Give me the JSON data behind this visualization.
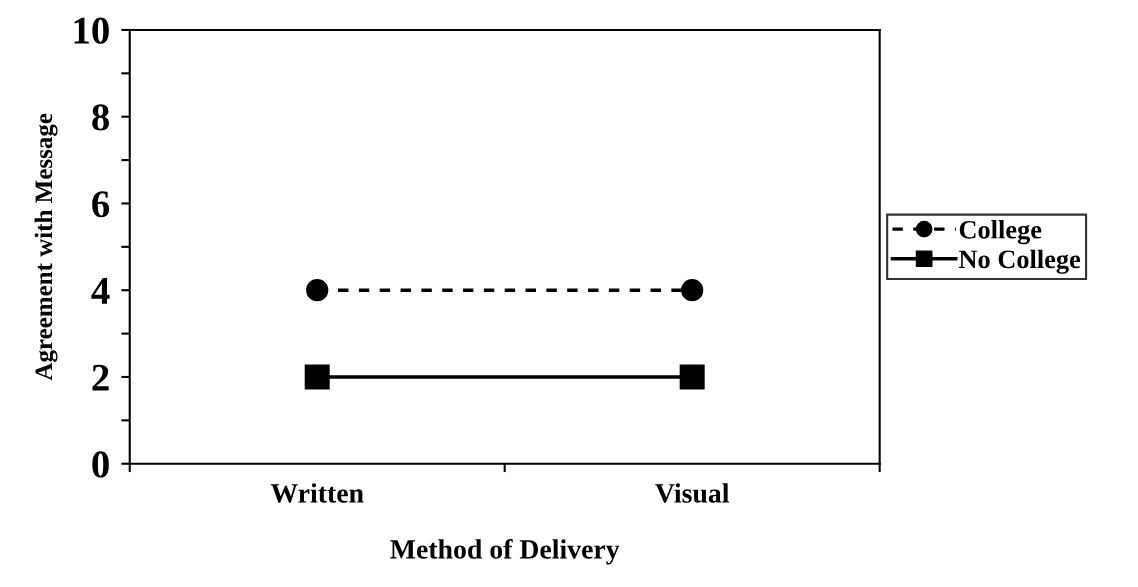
{
  "chart_data": {
    "type": "line",
    "xlabel": "Method of Delivery",
    "ylabel": "Agreement with Message",
    "categories": [
      "Written",
      "Visual"
    ],
    "series": [
      {
        "name": "College",
        "color": "#000000",
        "values": [
          4,
          4
        ],
        "marker": "circle",
        "line_style": "dashed"
      },
      {
        "name": "No College",
        "color": "#000000",
        "values": [
          2,
          2
        ],
        "marker": "square",
        "line_style": "solid"
      }
    ],
    "ylim": [
      0,
      10
    ],
    "yticks": [
      0,
      {
        "value": 1,
        "label": null
      },
      2,
      {
        "value": 3,
        "label": null
      },
      4,
      {
        "value": 5,
        "label": null
      },
      6,
      {
        "value": 7,
        "label": null
      },
      8,
      {
        "value": 9,
        "label": null
      },
      10
    ],
    "grid": false,
    "legend": "right"
  }
}
